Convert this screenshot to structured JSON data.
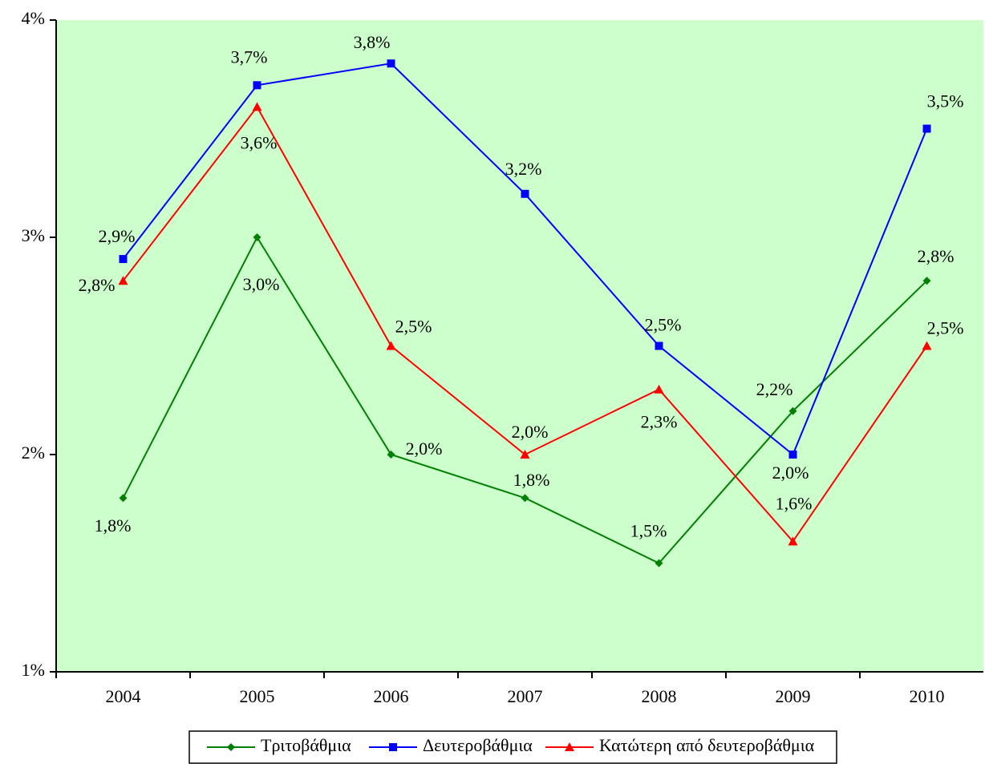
{
  "chart_data": {
    "type": "line",
    "categories": [
      "2004",
      "2005",
      "2006",
      "2007",
      "2008",
      "2009",
      "2010"
    ],
    "series": [
      {
        "name": "Τριτοβάθμια",
        "color": "#008000",
        "marker": "diamond",
        "values": [
          1.8,
          3.0,
          2.0,
          1.8,
          1.5,
          2.2,
          2.8
        ],
        "value_labels": [
          "1,8%",
          "3,0%",
          "2,0%",
          "1,8%",
          "1,5%",
          "2,2%",
          "2,8%"
        ]
      },
      {
        "name": "Δευτεροβάθμια",
        "color": "#0000ff",
        "marker": "square",
        "values": [
          2.9,
          3.7,
          3.8,
          3.2,
          2.5,
          2.0,
          3.5
        ],
        "value_labels": [
          "2,9%",
          "3,7%",
          "3,8%",
          "3,2%",
          "2,5%",
          "2,0%",
          "3,5%"
        ]
      },
      {
        "name": "Κατώτερη από δευτεροβάθμια",
        "color": "#ff0000",
        "marker": "triangle",
        "values": [
          2.8,
          3.6,
          2.5,
          2.0,
          2.3,
          1.6,
          2.5
        ],
        "value_labels": [
          "2,8%",
          "3,6%",
          "2,5%",
          "2,0%",
          "2,3%",
          "1,6%",
          "2,5%"
        ]
      }
    ],
    "ylim": [
      1,
      4
    ],
    "yticks": [
      {
        "value": 1,
        "label": "1%"
      },
      {
        "value": 2,
        "label": "2%"
      },
      {
        "value": 3,
        "label": "3%"
      },
      {
        "value": 4,
        "label": "4%"
      }
    ],
    "background": "#ccffcc",
    "legend": "bottom"
  }
}
